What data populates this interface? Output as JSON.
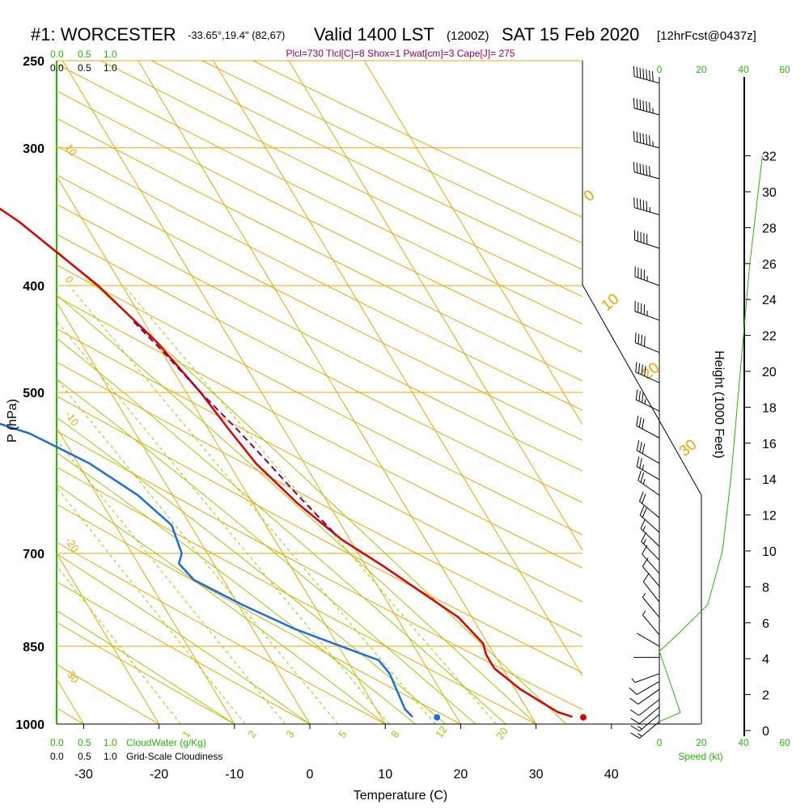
{
  "header": {
    "station": "#1: WORCESTER",
    "coords": "-33.65°,19.4\" (82,67)",
    "valid": "Valid 1400 LST",
    "utc": "(1200Z)",
    "date": "SAT 15 Feb 2020",
    "forecast": "[12hrFcst@0437z]",
    "indices": "Plcl=730 Tlcl[C]=8 Shox=1 Pwat[cm]=3 Cape[J]= 275"
  },
  "colors": {
    "temperature": "#e00000",
    "dewpoint": "#1a6fe0",
    "parcel": "#800060",
    "isotherm": "#e8a800",
    "dry_adiabat": "#e8a800",
    "moist_adiabat": "#9acd00",
    "mixing_ratio": "#9acd00",
    "cloud": "#22bb00"
  },
  "chart_data": {
    "type": "line",
    "title": "#1: WORCESTER",
    "xlabel": "Temperature (C)",
    "ylabel": "P (hPa)",
    "y2label": "Height (1000 Feet)",
    "x_ticks": [
      -30,
      -20,
      -10,
      0,
      10,
      20,
      30,
      40
    ],
    "p_ticks": [
      250,
      300,
      400,
      500,
      700,
      850,
      1000
    ],
    "height_ticks": [
      0,
      2,
      4,
      6,
      8,
      10,
      12,
      14,
      16,
      18,
      20,
      22,
      24,
      26,
      28,
      30,
      32
    ],
    "ylim": [
      1000,
      250
    ],
    "cloud_scale_top_green": [
      "0.0",
      "0.5",
      "1.0"
    ],
    "cloud_scale_top_black": [
      "0.0",
      "0.5",
      "1.0"
    ],
    "cloud_scale_bottom_green": [
      "0.0",
      "0.5",
      "1.0"
    ],
    "cloud_scale_bottom_black": [
      "0.0",
      "0.5",
      "1.0"
    ],
    "cloud_water_label": "CloudWater (g/Kg)",
    "cloudiness_label": "Grid-Scale Cloudiness",
    "speed_label": "Speed (kt)",
    "speed_ticks_top_black": [
      "0"
    ],
    "speed_ticks_top_green": [
      "20",
      "40",
      "60"
    ],
    "speed_ticks_bottom_black": [
      "0",
      "20",
      "40"
    ],
    "speed_ticks_bottom_green": [
      "60"
    ],
    "isotherm_labels": [
      "10",
      "0",
      "-10",
      "-20",
      "-30"
    ],
    "theta_labels": [
      "0",
      "10",
      "20",
      "30"
    ],
    "mixing_ratio_labels": [
      "1",
      "2",
      "3",
      "5",
      "8",
      "12",
      "20"
    ],
    "series": [
      {
        "name": "temperature",
        "points": [
          {
            "p": 986,
            "t": 36.8,
            "marker": true
          },
          {
            "p": 985,
            "t": 35.4
          },
          {
            "p": 975,
            "t": 33.8
          },
          {
            "p": 930,
            "t": 30.7
          },
          {
            "p": 890,
            "t": 28.9
          },
          {
            "p": 865,
            "t": 28.9
          },
          {
            "p": 845,
            "t": 29.4
          },
          {
            "p": 800,
            "t": 28.2
          },
          {
            "p": 720,
            "t": 22.4
          },
          {
            "p": 680,
            "t": 18.9
          },
          {
            "p": 630,
            "t": 15.9
          },
          {
            "p": 580,
            "t": 13.6
          },
          {
            "p": 540,
            "t": 12.7
          },
          {
            "p": 500,
            "t": 11.9
          },
          {
            "p": 450,
            "t": 10.1
          },
          {
            "p": 400,
            "t": 6.8
          },
          {
            "p": 350,
            "t": 1.4
          },
          {
            "p": 300,
            "t": -7.2
          },
          {
            "p": 262,
            "t": -15.6
          }
        ]
      },
      {
        "name": "dewpoint",
        "points": [
          {
            "p": 986,
            "t": 17.4,
            "marker": true
          },
          {
            "p": 985,
            "t": 14.2
          },
          {
            "p": 970,
            "t": 13.8
          },
          {
            "p": 900,
            "t": 14.6
          },
          {
            "p": 875,
            "t": 14.2
          },
          {
            "p": 855,
            "t": 11.1
          },
          {
            "p": 820,
            "t": 5.6
          },
          {
            "p": 780,
            "t": 0.6
          },
          {
            "p": 740,
            "t": -3.9
          },
          {
            "p": 715,
            "t": -4.6
          },
          {
            "p": 700,
            "t": -3.4
          },
          {
            "p": 660,
            "t": -2.5
          },
          {
            "p": 620,
            "t": -4.6
          },
          {
            "p": 580,
            "t": -8.5
          },
          {
            "p": 545,
            "t": -14.0
          },
          {
            "p": 500,
            "t": -27.6
          },
          {
            "p": 460,
            "t": -42.3
          },
          {
            "p": 425,
            "t": -54.6
          },
          {
            "p": 390,
            "t": -56.5
          },
          {
            "p": 370,
            "t": -56.7
          },
          {
            "p": 350,
            "t": -57.2
          },
          {
            "p": 320,
            "t": -59.8
          },
          {
            "p": 300,
            "t": -61.2
          },
          {
            "p": 280,
            "t": -63.1
          },
          {
            "p": 262,
            "t": -65.0
          }
        ]
      },
      {
        "name": "parcel",
        "points": [
          {
            "p": 670,
            "t": 18.4
          },
          {
            "p": 620,
            "t": 16.6
          },
          {
            "p": 580,
            "t": 15.3
          },
          {
            "p": 540,
            "t": 13.8
          },
          {
            "p": 500,
            "t": 11.9
          },
          {
            "p": 460,
            "t": 10.2
          },
          {
            "p": 430,
            "t": 8.6
          }
        ]
      }
    ],
    "wind_profile": [
      {
        "p": 995,
        "spd": 15,
        "dir": 230
      },
      {
        "p": 980,
        "spd": 15,
        "dir": 230
      },
      {
        "p": 965,
        "spd": 14,
        "dir": 230
      },
      {
        "p": 950,
        "spd": 13,
        "dir": 232
      },
      {
        "p": 930,
        "spd": 12,
        "dir": 235
      },
      {
        "p": 915,
        "spd": 10,
        "dir": 240
      },
      {
        "p": 900,
        "spd": 7,
        "dir": 250
      },
      {
        "p": 870,
        "spd": 3,
        "dir": 270
      },
      {
        "p": 850,
        "spd": 3,
        "dir": 300
      },
      {
        "p": 830,
        "spd": 6,
        "dir": 320
      },
      {
        "p": 800,
        "spd": 8,
        "dir": 320
      },
      {
        "p": 775,
        "spd": 10,
        "dir": 322
      },
      {
        "p": 750,
        "spd": 12,
        "dir": 320
      },
      {
        "p": 730,
        "spd": 14,
        "dir": 318
      },
      {
        "p": 710,
        "spd": 16,
        "dir": 316
      },
      {
        "p": 690,
        "spd": 18,
        "dir": 314
      },
      {
        "p": 670,
        "spd": 20,
        "dir": 312
      },
      {
        "p": 650,
        "spd": 22,
        "dir": 310
      },
      {
        "p": 620,
        "spd": 25,
        "dir": 305
      },
      {
        "p": 600,
        "spd": 28,
        "dir": 300
      },
      {
        "p": 580,
        "spd": 30,
        "dir": 300
      },
      {
        "p": 550,
        "spd": 32,
        "dir": 298
      },
      {
        "p": 520,
        "spd": 35,
        "dir": 296
      },
      {
        "p": 490,
        "spd": 40,
        "dir": 294
      },
      {
        "p": 460,
        "spd": 42,
        "dir": 292
      },
      {
        "p": 430,
        "spd": 45,
        "dir": 290
      },
      {
        "p": 400,
        "spd": 48,
        "dir": 290
      },
      {
        "p": 370,
        "spd": 50,
        "dir": 288
      },
      {
        "p": 345,
        "spd": 55,
        "dir": 286
      },
      {
        "p": 320,
        "spd": 60,
        "dir": 285
      },
      {
        "p": 300,
        "spd": 65,
        "dir": 285
      },
      {
        "p": 280,
        "spd": 68,
        "dir": 285
      },
      {
        "p": 262,
        "spd": 70,
        "dir": 285
      }
    ],
    "wind_speed_profile": [
      {
        "speed": 0,
        "h": 0.5
      },
      {
        "speed": 10,
        "h": 1
      },
      {
        "speed": 3,
        "h": 3.4
      },
      {
        "speed": 0,
        "h": 4.4
      },
      {
        "speed": 10,
        "h": 5.5
      },
      {
        "speed": 23,
        "h": 7
      },
      {
        "speed": 30,
        "h": 10
      },
      {
        "speed": 34,
        "h": 14
      },
      {
        "speed": 37,
        "h": 18
      },
      {
        "speed": 40,
        "h": 22
      },
      {
        "speed": 43,
        "h": 26
      },
      {
        "speed": 47,
        "h": 30
      },
      {
        "speed": 49,
        "h": 32
      }
    ]
  }
}
